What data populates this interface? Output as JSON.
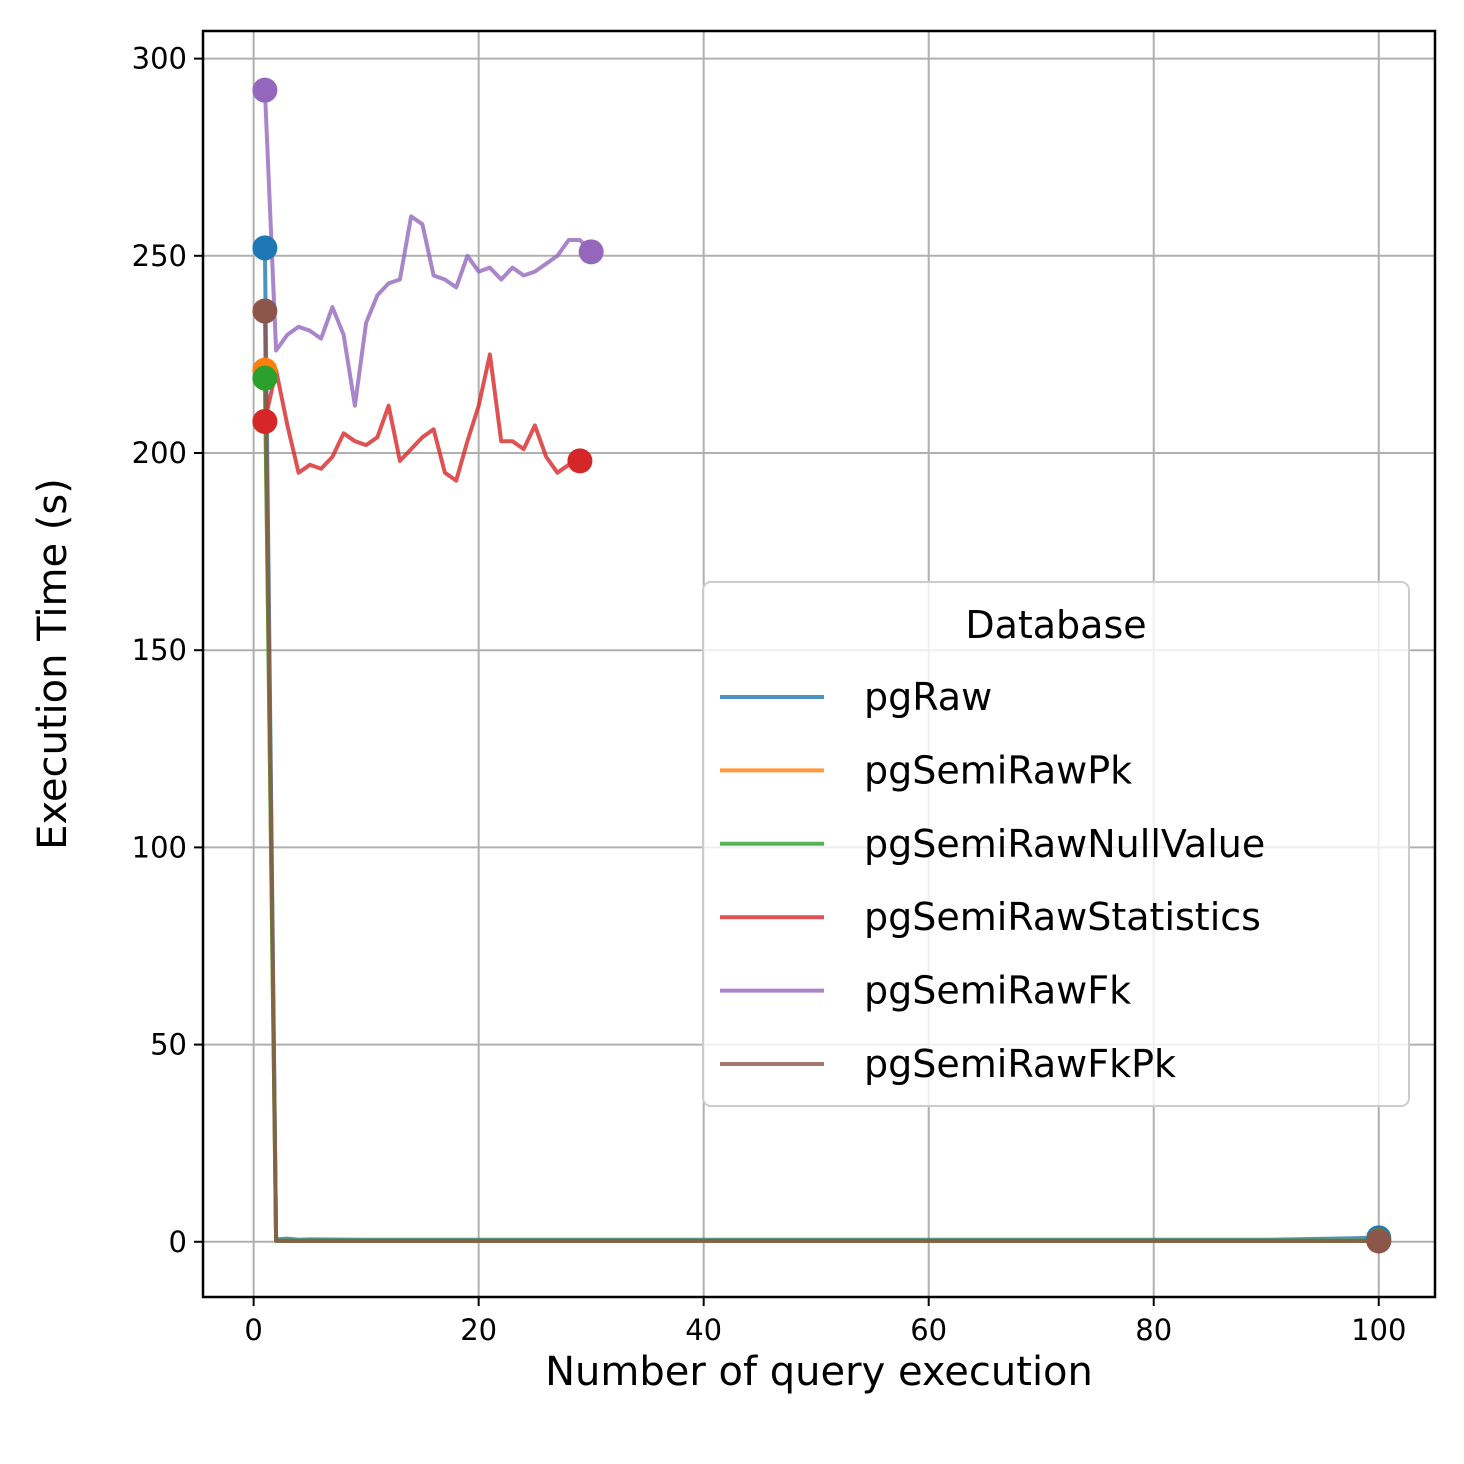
{
  "chart_data": {
    "type": "line",
    "title": "",
    "xlabel": "Number of query execution",
    "ylabel": "Execution Time (s)",
    "xlim": [
      -4.5,
      105
    ],
    "ylim": [
      -14,
      307
    ],
    "xticks": [
      0,
      20,
      40,
      60,
      80,
      100
    ],
    "yticks": [
      0,
      50,
      100,
      150,
      200,
      250,
      300
    ],
    "xtick_labels": [
      "0",
      "20",
      "40",
      "60",
      "80",
      "100"
    ],
    "ytick_labels": [
      "0",
      "50",
      "100",
      "150",
      "200",
      "250",
      "300"
    ],
    "grid": true,
    "legend": {
      "title": "Database",
      "placement": "center-right"
    },
    "series": [
      {
        "name": "pgRaw",
        "color": "#1f77b4",
        "x": [
          1,
          2,
          3,
          4,
          5,
          10,
          20,
          30,
          40,
          50,
          60,
          70,
          80,
          90,
          100
        ],
        "y": [
          252,
          0.6,
          0.8,
          0.5,
          0.6,
          0.5,
          0.5,
          0.5,
          0.5,
          0.5,
          0.5,
          0.5,
          0.5,
          0.5,
          1
        ],
        "markers": [
          {
            "x": 1,
            "y": 252
          },
          {
            "x": 100,
            "y": 1
          }
        ]
      },
      {
        "name": "pgSemiRawPk",
        "color": "#ff7f0e",
        "x": [
          1,
          2,
          3,
          10,
          20,
          30,
          40,
          50,
          60,
          70,
          80,
          90,
          100
        ],
        "y": [
          221,
          0.3,
          0.3,
          0.3,
          0.3,
          0.3,
          0.3,
          0.3,
          0.3,
          0.3,
          0.3,
          0.3,
          0.3
        ],
        "markers": [
          {
            "x": 1,
            "y": 221
          },
          {
            "x": 100,
            "y": 0.3
          }
        ]
      },
      {
        "name": "pgSemiRawNullValue",
        "color": "#2ca02c",
        "x": [
          1,
          2,
          3,
          10,
          20,
          30,
          40,
          50,
          60,
          70,
          80,
          90,
          100
        ],
        "y": [
          219,
          0.3,
          0.3,
          0.3,
          0.3,
          0.3,
          0.3,
          0.3,
          0.3,
          0.3,
          0.3,
          0.3,
          0.3
        ],
        "markers": [
          {
            "x": 1,
            "y": 219
          },
          {
            "x": 100,
            "y": 0.3
          }
        ]
      },
      {
        "name": "pgSemiRawStatistics",
        "color": "#d62728",
        "x": [
          1,
          2,
          3,
          4,
          5,
          6,
          7,
          8,
          9,
          10,
          11,
          12,
          13,
          14,
          15,
          16,
          17,
          18,
          19,
          20,
          21,
          22,
          23,
          24,
          25,
          26,
          27,
          28,
          29
        ],
        "y": [
          208,
          221,
          207,
          195,
          197,
          196,
          199,
          205,
          203,
          202,
          204,
          212,
          198,
          201,
          204,
          206,
          195,
          193,
          203,
          212,
          225,
          203,
          203,
          201,
          207,
          199,
          195,
          197,
          198
        ],
        "markers": [
          {
            "x": 1,
            "y": 208
          },
          {
            "x": 29,
            "y": 198
          }
        ]
      },
      {
        "name": "pgSemiRawFk",
        "color": "#9467bd",
        "x": [
          1,
          2,
          3,
          4,
          5,
          6,
          7,
          8,
          9,
          10,
          11,
          12,
          13,
          14,
          15,
          16,
          17,
          18,
          19,
          20,
          21,
          22,
          23,
          24,
          25,
          26,
          27,
          28,
          29,
          30
        ],
        "y": [
          292,
          226,
          230,
          232,
          231,
          229,
          237,
          230,
          212,
          233,
          240,
          243,
          244,
          260,
          258,
          245,
          244,
          242,
          250,
          246,
          247,
          244,
          247,
          245,
          246,
          248,
          250,
          254,
          254,
          251
        ],
        "markers": [
          {
            "x": 1,
            "y": 292
          },
          {
            "x": 30,
            "y": 251
          }
        ]
      },
      {
        "name": "pgSemiRawFkPk",
        "color": "#8c564b",
        "x": [
          1,
          1.5,
          2,
          3,
          10,
          20,
          30,
          40,
          50,
          60,
          70,
          80,
          90,
          100
        ],
        "y": [
          236,
          120,
          0.2,
          0.2,
          0.2,
          0.2,
          0.2,
          0.2,
          0.2,
          0.2,
          0.2,
          0.2,
          0.2,
          0.2
        ],
        "markers": [
          {
            "x": 1,
            "y": 236
          },
          {
            "x": 100,
            "y": 0.2
          }
        ]
      }
    ]
  }
}
